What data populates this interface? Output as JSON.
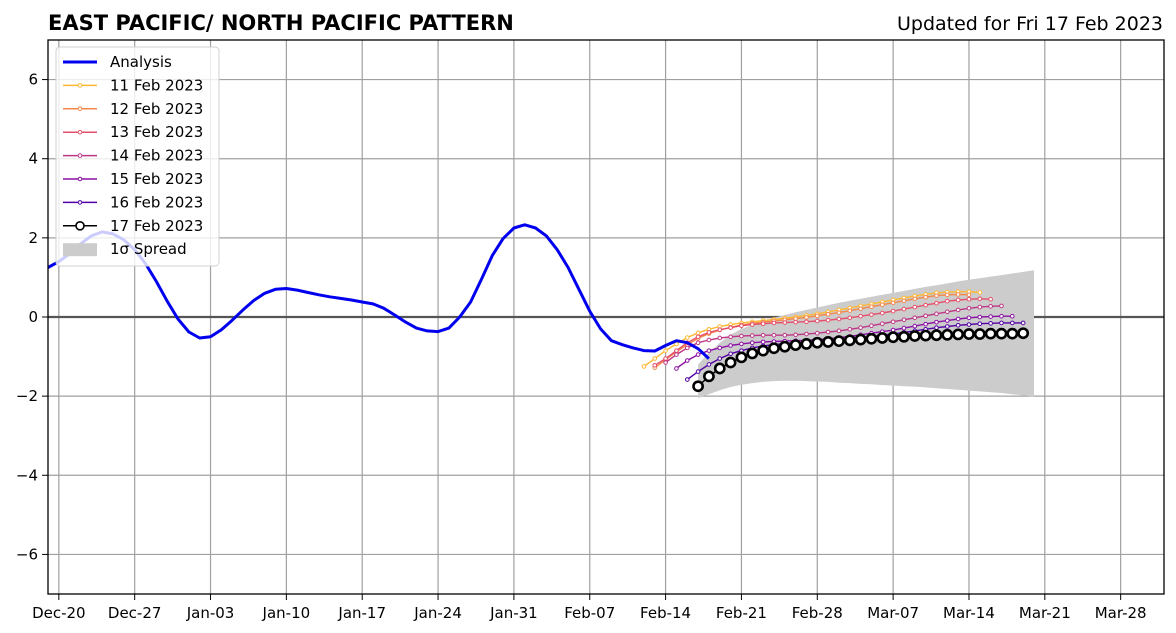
{
  "chart_data": {
    "type": "line",
    "title": "EAST PACIFIC/ NORTH PACIFIC PATTERN",
    "subtitle": "Updated for Fri 17 Feb 2023",
    "xlabel": "",
    "ylabel": "",
    "xlim": [
      "2022-12-19",
      "2023-04-01"
    ],
    "ylim": [
      -7,
      7
    ],
    "x_ticks": [
      "Dec-20",
      "Dec-27",
      "Jan-03",
      "Jan-10",
      "Jan-17",
      "Jan-24",
      "Jan-31",
      "Feb-07",
      "Feb-14",
      "Feb-21",
      "Feb-28",
      "Mar-07",
      "Mar-14",
      "Mar-21",
      "Mar-28"
    ],
    "y_ticks": [
      -6,
      -4,
      -2,
      0,
      2,
      4,
      6
    ],
    "grid": true,
    "legend_position": "top-left",
    "analysis": {
      "name": "Analysis",
      "color": "#0000ee",
      "start": "2022-12-19",
      "values": [
        1.25,
        1.4,
        1.6,
        1.85,
        2.05,
        2.15,
        2.1,
        1.95,
        1.7,
        1.35,
        0.9,
        0.4,
        -0.05,
        -0.38,
        -0.53,
        -0.5,
        -0.32,
        -0.08,
        0.18,
        0.42,
        0.6,
        0.7,
        0.72,
        0.68,
        0.62,
        0.56,
        0.51,
        0.47,
        0.43,
        0.38,
        0.33,
        0.22,
        0.05,
        -0.13,
        -0.28,
        -0.35,
        -0.37,
        -0.28,
        0.0,
        0.38,
        0.95,
        1.55,
        1.98,
        2.25,
        2.33,
        2.25,
        2.05,
        1.7,
        1.25,
        0.7,
        0.15,
        -0.3,
        -0.6,
        -0.7,
        -0.78,
        -0.85,
        -0.86,
        -0.72,
        -0.6,
        -0.65,
        -0.8,
        -1.05
      ]
    },
    "forecasts": [
      {
        "name": "11 Feb 2023",
        "color": "#ffb833",
        "start": "2023-02-12",
        "values": [
          -1.25,
          -1.05,
          -0.85,
          -0.68,
          -0.52,
          -0.4,
          -0.31,
          -0.24,
          -0.19,
          -0.15,
          -0.12,
          -0.09,
          -0.06,
          -0.03,
          0.0,
          0.04,
          0.08,
          0.13,
          0.18,
          0.23,
          0.28,
          0.33,
          0.38,
          0.43,
          0.48,
          0.53,
          0.57,
          0.61,
          0.63,
          0.64,
          0.64,
          0.62
        ]
      },
      {
        "name": "12 Feb 2023",
        "color": "#f4874a",
        "start": "2023-02-13",
        "values": [
          -1.28,
          -1.08,
          -0.88,
          -0.7,
          -0.54,
          -0.42,
          -0.33,
          -0.26,
          -0.2,
          -0.16,
          -0.13,
          -0.1,
          -0.07,
          -0.04,
          -0.01,
          0.03,
          0.07,
          0.11,
          0.16,
          0.21,
          0.26,
          0.31,
          0.36,
          0.41,
          0.46,
          0.5,
          0.54,
          0.56,
          0.57,
          0.56
        ]
      },
      {
        "name": "13 Feb 2023",
        "color": "#e4506a",
        "start": "2023-02-13",
        "values": [
          -1.22,
          -1.05,
          -0.85,
          -0.65,
          -0.5,
          -0.39,
          -0.32,
          -0.27,
          -0.22,
          -0.19,
          -0.17,
          -0.15,
          -0.14,
          -0.13,
          -0.12,
          -0.1,
          -0.08,
          -0.05,
          -0.02,
          0.02,
          0.06,
          0.1,
          0.15,
          0.2,
          0.25,
          0.3,
          0.35,
          0.4,
          0.43,
          0.45,
          0.46,
          0.45
        ]
      },
      {
        "name": "14 Feb 2023",
        "color": "#bd3786",
        "start": "2023-02-14",
        "values": [
          -1.15,
          -0.95,
          -0.78,
          -0.65,
          -0.58,
          -0.53,
          -0.5,
          -0.48,
          -0.47,
          -0.46,
          -0.46,
          -0.46,
          -0.45,
          -0.43,
          -0.41,
          -0.38,
          -0.35,
          -0.31,
          -0.27,
          -0.22,
          -0.17,
          -0.12,
          -0.07,
          -0.02,
          0.03,
          0.08,
          0.13,
          0.18,
          0.22,
          0.25,
          0.27,
          0.28
        ]
      },
      {
        "name": "15 Feb 2023",
        "color": "#8b10a5",
        "start": "2023-02-15",
        "values": [
          -1.3,
          -1.1,
          -0.95,
          -0.85,
          -0.78,
          -0.72,
          -0.68,
          -0.65,
          -0.63,
          -0.62,
          -0.61,
          -0.6,
          -0.59,
          -0.57,
          -0.55,
          -0.52,
          -0.49,
          -0.45,
          -0.41,
          -0.37,
          -0.33,
          -0.28,
          -0.23,
          -0.18,
          -0.13,
          -0.09,
          -0.05,
          -0.02,
          0.0,
          0.01,
          0.02,
          0.02
        ]
      },
      {
        "name": "16 Feb 2023",
        "color": "#5302a3",
        "start": "2023-02-16",
        "values": [
          -1.58,
          -1.38,
          -1.2,
          -1.05,
          -0.93,
          -0.85,
          -0.78,
          -0.73,
          -0.7,
          -0.67,
          -0.65,
          -0.63,
          -0.61,
          -0.59,
          -0.57,
          -0.55,
          -0.52,
          -0.49,
          -0.46,
          -0.43,
          -0.39,
          -0.35,
          -0.31,
          -0.27,
          -0.24,
          -0.21,
          -0.19,
          -0.17,
          -0.16,
          -0.15,
          -0.15,
          -0.15
        ]
      },
      {
        "name": "17 Feb 2023",
        "color": "#000000",
        "start": "2023-02-17",
        "values": [
          -1.75,
          -1.5,
          -1.3,
          -1.15,
          -1.02,
          -0.92,
          -0.85,
          -0.79,
          -0.75,
          -0.71,
          -0.68,
          -0.65,
          -0.63,
          -0.61,
          -0.59,
          -0.57,
          -0.55,
          -0.53,
          -0.51,
          -0.5,
          -0.48,
          -0.47,
          -0.46,
          -0.45,
          -0.44,
          -0.43,
          -0.43,
          -0.42,
          -0.42,
          -0.42,
          -0.41
        ]
      }
    ],
    "spread": {
      "name": "1σ Spread",
      "color": "#cccccc",
      "start": "2023-02-17",
      "upper": [
        -1.2,
        -0.9,
        -0.65,
        -0.45,
        -0.3,
        -0.2,
        -0.1,
        -0.02,
        0.05,
        0.12,
        0.18,
        0.24,
        0.3,
        0.36,
        0.41,
        0.46,
        0.51,
        0.56,
        0.61,
        0.66,
        0.71,
        0.76,
        0.8,
        0.85,
        0.9,
        0.94,
        0.98,
        1.02,
        1.06,
        1.1,
        1.14,
        1.18
      ],
      "lower": [
        -2.05,
        -1.95,
        -1.85,
        -1.77,
        -1.71,
        -1.67,
        -1.64,
        -1.62,
        -1.61,
        -1.61,
        -1.62,
        -1.63,
        -1.64,
        -1.66,
        -1.67,
        -1.69,
        -1.7,
        -1.72,
        -1.73,
        -1.75,
        -1.76,
        -1.78,
        -1.8,
        -1.82,
        -1.84,
        -1.86,
        -1.88,
        -1.9,
        -1.92,
        -1.95,
        -1.98,
        -2.02
      ]
    }
  }
}
